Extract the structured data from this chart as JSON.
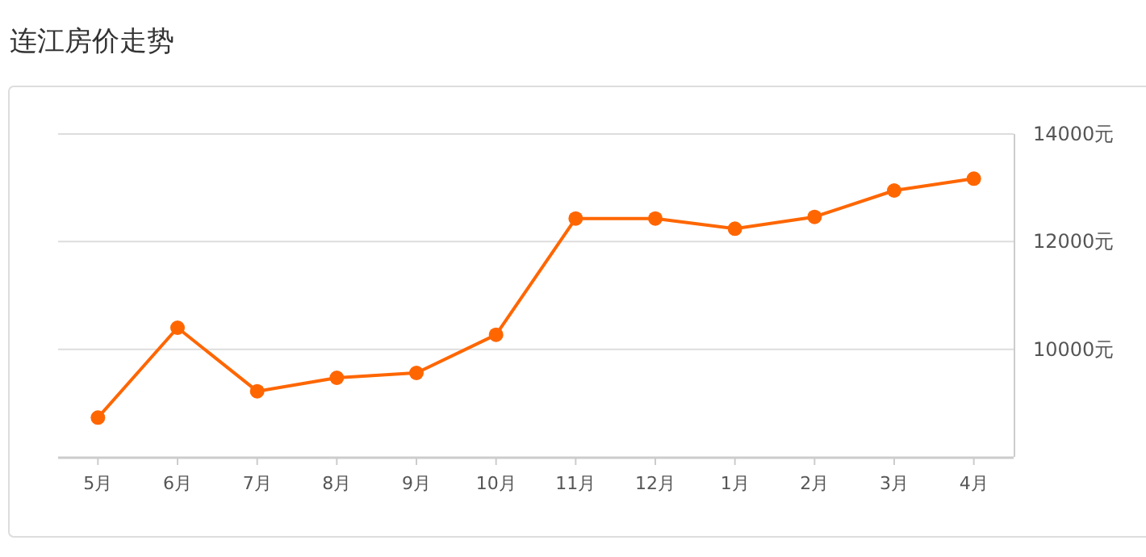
{
  "chart_data": {
    "type": "line",
    "title": "连江房价走势",
    "categories": [
      "5月",
      "6月",
      "7月",
      "8月",
      "9月",
      "10月",
      "11月",
      "12月",
      "1月",
      "2月",
      "3月",
      "4月"
    ],
    "series": [
      {
        "color": "#ff6600",
        "values": [
          8730,
          10400,
          9220,
          9470,
          9560,
          10270,
          12430,
          12430,
          12240,
          12460,
          12950,
          13170
        ]
      }
    ],
    "ylim": [
      8000,
      14000
    ],
    "yticks": [
      {
        "value": 10000,
        "label": "10000元"
      },
      {
        "value": 12000,
        "label": "12000元"
      },
      {
        "value": 14000,
        "label": "14000元"
      }
    ],
    "grid": "y",
    "marker": "circle",
    "line_style": "solid"
  }
}
